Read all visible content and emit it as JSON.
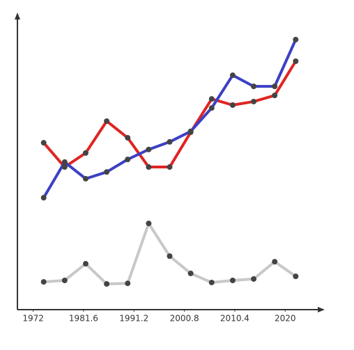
{
  "chart_data": {
    "type": "line",
    "x": [
      1974,
      1978,
      1982,
      1986,
      1990,
      1994,
      1998,
      2002,
      2006,
      2010,
      2014,
      2018,
      2022
    ],
    "series": [
      {
        "color": "#e02424",
        "values": [
          57.1,
          48.8,
          53.6,
          64.5,
          58.8,
          48.8,
          48.8,
          60.7,
          72.1,
          70.0,
          71.2,
          73.3,
          85.0
        ]
      },
      {
        "color": "#3b40c4",
        "values": [
          38.3,
          50.5,
          44.8,
          47.1,
          51.4,
          54.8,
          57.4,
          61.0,
          69.0,
          80.2,
          76.4,
          76.4,
          92.4
        ]
      },
      {
        "color": "#c8c8c8",
        "values": [
          9.5,
          10.0,
          15.7,
          8.8,
          9.0,
          29.5,
          18.3,
          12.4,
          9.3,
          10.0,
          10.5,
          16.4,
          11.4
        ]
      }
    ],
    "xlim": [
      1969,
      2027
    ],
    "xticks": [
      1972,
      1981.6,
      1991.2,
      2000.8,
      2010.4,
      2020
    ],
    "ylim": [
      0,
      100
    ],
    "marker_color": "#444444",
    "grid": false
  }
}
